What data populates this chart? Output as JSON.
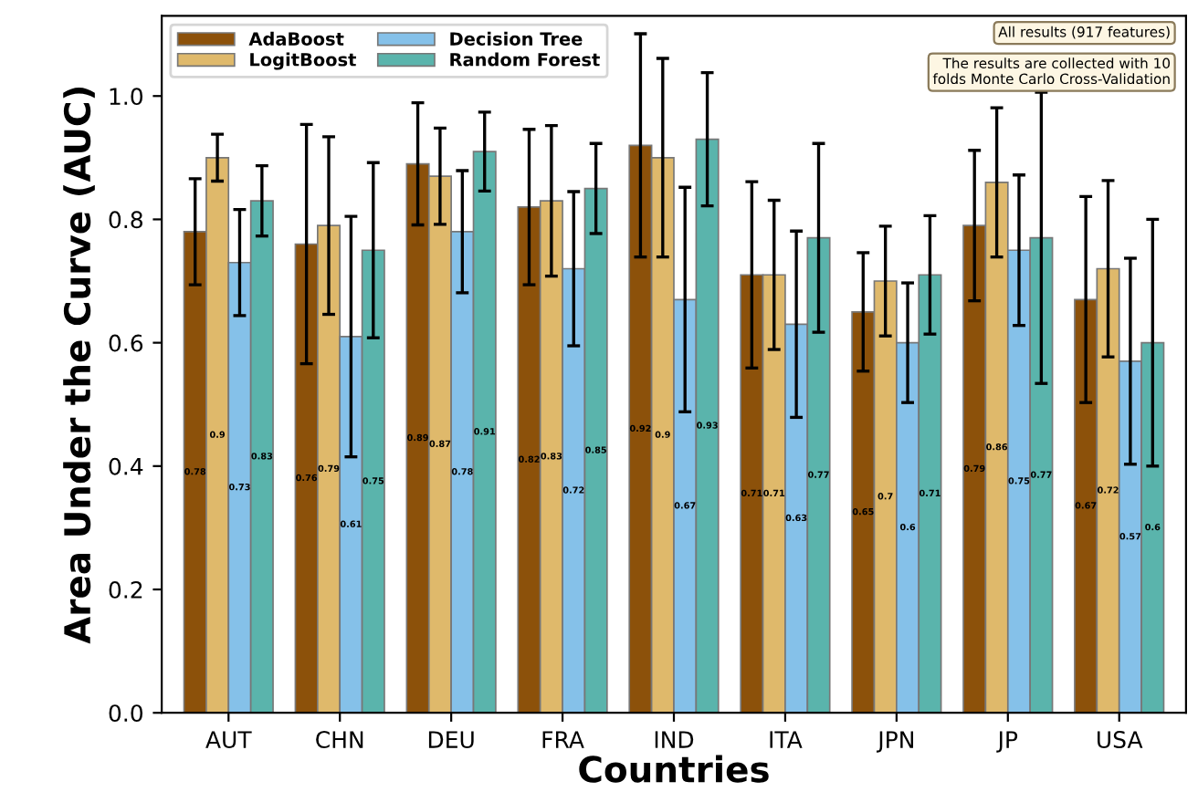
{
  "chart_data": {
    "type": "bar",
    "xlabel": "Countries",
    "ylabel": "Area Under the Curve (AUC)",
    "categories": [
      "AUT",
      "CHN",
      "DEU",
      "FRA",
      "IND",
      "ITA",
      "JPN",
      "JP",
      "USA"
    ],
    "series": [
      {
        "name": "AdaBoost",
        "color": "#8c510a",
        "values": [
          0.78,
          0.76,
          0.89,
          0.82,
          0.92,
          0.71,
          0.65,
          0.79,
          0.67
        ],
        "errors": [
          0.086,
          0.194,
          0.099,
          0.126,
          0.181,
          0.151,
          0.096,
          0.122,
          0.167
        ]
      },
      {
        "name": "LogitBoost",
        "color": "#dfb96b",
        "values": [
          0.9,
          0.79,
          0.87,
          0.83,
          0.9,
          0.71,
          0.7,
          0.86,
          0.72
        ],
        "errors": [
          0.038,
          0.144,
          0.078,
          0.122,
          0.161,
          0.121,
          0.089,
          0.121,
          0.143
        ]
      },
      {
        "name": "Decision Tree",
        "color": "#85c1e9",
        "values": [
          0.73,
          0.61,
          0.78,
          0.72,
          0.67,
          0.63,
          0.6,
          0.75,
          0.57
        ],
        "errors": [
          0.086,
          0.195,
          0.099,
          0.125,
          0.182,
          0.151,
          0.097,
          0.122,
          0.167
        ]
      },
      {
        "name": "Random Forest",
        "color": "#5ab4ac",
        "values": [
          0.83,
          0.75,
          0.91,
          0.85,
          0.93,
          0.77,
          0.71,
          0.77,
          0.6
        ],
        "errors": [
          0.057,
          0.142,
          0.064,
          0.073,
          0.108,
          0.153,
          0.096,
          0.236,
          0.2
        ]
      }
    ],
    "ylim": [
      0,
      1.13
    ],
    "yticks": [
      {
        "value": 0,
        "label": "0.0"
      },
      {
        "value": 0.2,
        "label": "0.2"
      },
      {
        "value": 0.4,
        "label": "0.4"
      },
      {
        "value": 0.6,
        "label": "0.6"
      },
      {
        "value": 0.8,
        "label": "0.8"
      },
      {
        "value": 1,
        "label": "1.0"
      }
    ],
    "data_labels": true,
    "legend": "top left",
    "grid": false,
    "annotations": [
      "All results (917 features)",
      "The results are collected with 10\nfolds Monte Carlo Cross-Validation"
    ]
  }
}
